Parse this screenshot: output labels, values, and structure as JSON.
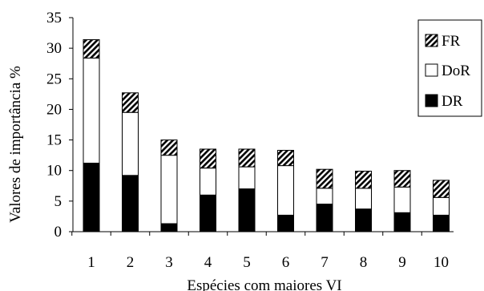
{
  "chart_data": {
    "type": "bar",
    "stacked": true,
    "title": "",
    "xlabel": "Espécies com maiores VI",
    "ylabel": "Valores de importância %",
    "categories": [
      "1",
      "2",
      "3",
      "4",
      "5",
      "6",
      "7",
      "8",
      "9",
      "10"
    ],
    "ylim": [
      0,
      35
    ],
    "yticks": [
      "0",
      "5",
      "10",
      "15",
      "20",
      "25",
      "30",
      "35"
    ],
    "grid": false,
    "legend_position": "top-right",
    "series": [
      {
        "name": "DR",
        "fill": "solid-black",
        "values": [
          11.2,
          9.2,
          1.3,
          6.0,
          7.0,
          2.7,
          4.5,
          3.7,
          3.1,
          2.7
        ]
      },
      {
        "name": "DoR",
        "fill": "white",
        "values": [
          17.2,
          10.3,
          11.2,
          4.4,
          3.6,
          8.1,
          2.6,
          3.4,
          4.2,
          2.9
        ]
      },
      {
        "name": "FR",
        "fill": "diagonal-hatch",
        "values": [
          3.0,
          3.2,
          2.5,
          3.1,
          2.9,
          2.5,
          3.1,
          2.8,
          2.7,
          2.8
        ]
      }
    ],
    "legend_order": [
      "FR",
      "DoR",
      "DR"
    ],
    "colors": {
      "ink": "#000000",
      "background": "#ffffff"
    }
  }
}
